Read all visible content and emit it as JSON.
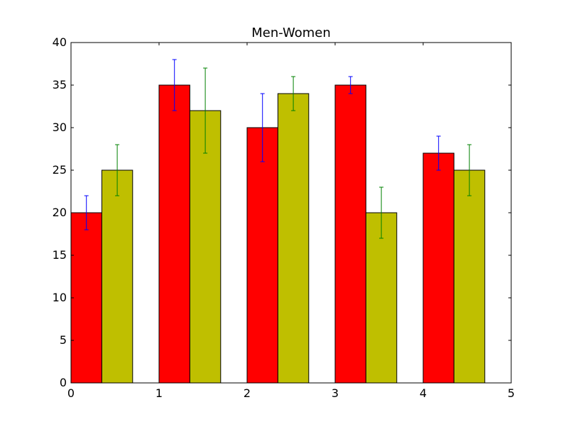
{
  "chart_data": {
    "type": "bar",
    "title": "Men-Women",
    "xlabel": "",
    "ylabel": "",
    "xlim": [
      0,
      5
    ],
    "ylim": [
      0,
      40
    ],
    "x_ticks": [
      0,
      1,
      2,
      3,
      4,
      5
    ],
    "y_ticks": [
      0,
      5,
      10,
      15,
      20,
      25,
      30,
      35,
      40
    ],
    "grid": false,
    "bar_width": 0.35,
    "series": [
      {
        "x": [
          0,
          1,
          2,
          3,
          4
        ],
        "values": [
          20,
          35,
          30,
          35,
          27
        ],
        "errors": [
          2,
          3,
          4,
          1,
          2
        ],
        "color": "#ff0000",
        "error_color": "#0000ff"
      },
      {
        "x": [
          0.35,
          1.35,
          2.35,
          3.35,
          4.35
        ],
        "values": [
          25,
          32,
          34,
          20,
          25
        ],
        "errors": [
          3,
          5,
          2,
          3,
          3
        ],
        "color": "#bfbf00",
        "error_color": "#008000"
      }
    ]
  }
}
